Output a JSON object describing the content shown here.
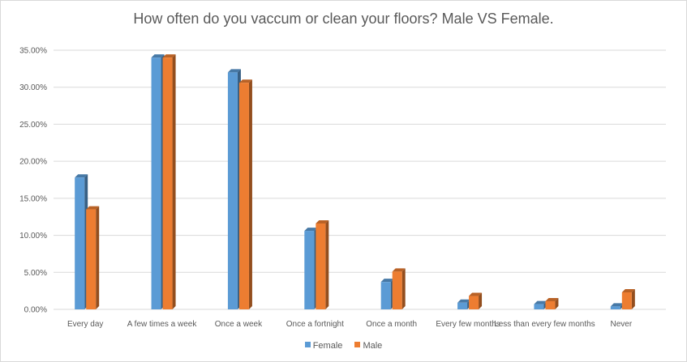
{
  "chart_data": {
    "type": "bar",
    "title": "How often do you vaccum or clean your floors? Male VS Female.",
    "categories": [
      "Every day",
      "A few times a week",
      "Once a week",
      "Once a fortnight",
      "Once a month",
      "Every few months",
      "Less than every few months",
      "Never"
    ],
    "series": [
      {
        "name": "Female",
        "color": "#5b9bd5",
        "values": [
          17.8,
          34.0,
          32.0,
          10.6,
          3.7,
          0.9,
          0.7,
          0.4
        ]
      },
      {
        "name": "Male",
        "color": "#ed7d31",
        "values": [
          13.5,
          34.0,
          30.6,
          11.6,
          5.1,
          1.8,
          1.1,
          2.3
        ]
      }
    ],
    "ylim": [
      0,
      35
    ],
    "yticks": [
      "0.00%",
      "5.00%",
      "10.00%",
      "15.00%",
      "20.00%",
      "25.00%",
      "30.00%",
      "35.00%"
    ],
    "grid": true,
    "legend": "bottom"
  }
}
